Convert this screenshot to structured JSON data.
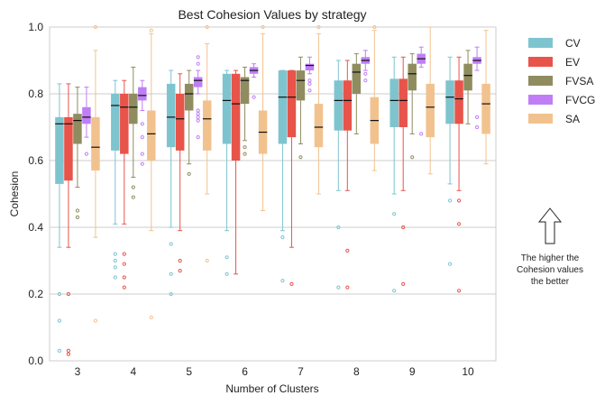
{
  "chart_data": {
    "type": "boxplot",
    "title": "Best Cohesion Values by strategy",
    "xlabel": "Number of Clusters",
    "ylabel": "Cohesion",
    "ylim": [
      0,
      1.0
    ],
    "y_ticks": [
      "0.0",
      "0.2",
      "0.4",
      "0.6",
      "0.8",
      "1.0"
    ],
    "y_tick_values": [
      0,
      0.2,
      0.4,
      0.6,
      0.8,
      1.0
    ],
    "categories": [
      "3",
      "4",
      "5",
      "6",
      "7",
      "8",
      "9",
      "10"
    ],
    "grid": true,
    "legend_position": "outside-right",
    "series": [
      {
        "name": "CV",
        "color": "#7ec4cf",
        "boxes": [
          {
            "q1": 0.53,
            "med": 0.71,
            "q3": 0.73,
            "lo": 0.34,
            "hi": 0.83,
            "fliers": [
              0.2,
              0.12,
              0.03
            ]
          },
          {
            "q1": 0.63,
            "med": 0.765,
            "q3": 0.8,
            "lo": 0.41,
            "hi": 0.84,
            "fliers": [
              0.32,
              0.3,
              0.28,
              0.25
            ]
          },
          {
            "q1": 0.64,
            "med": 0.73,
            "q3": 0.83,
            "lo": 0.4,
            "hi": 0.87,
            "fliers": [
              0.35,
              0.26,
              0.2
            ]
          },
          {
            "q1": 0.65,
            "med": 0.78,
            "q3": 0.86,
            "lo": 0.39,
            "hi": 0.87,
            "fliers": [
              0.31,
              0.26
            ]
          },
          {
            "q1": 0.65,
            "med": 0.79,
            "q3": 0.87,
            "lo": 0.39,
            "hi": 0.87,
            "fliers": [
              0.37,
              0.24
            ]
          },
          {
            "q1": 0.69,
            "med": 0.78,
            "q3": 0.84,
            "lo": 0.51,
            "hi": 0.9,
            "fliers": [
              0.4,
              0.22
            ]
          },
          {
            "q1": 0.7,
            "med": 0.78,
            "q3": 0.845,
            "lo": 0.5,
            "hi": 0.91,
            "fliers": [
              0.44,
              0.21
            ]
          },
          {
            "q1": 0.71,
            "med": 0.79,
            "q3": 0.84,
            "lo": 0.53,
            "hi": 0.91,
            "fliers": [
              0.48,
              0.29
            ]
          }
        ]
      },
      {
        "name": "EV",
        "color": "#e8544a",
        "boxes": [
          {
            "q1": 0.54,
            "med": 0.71,
            "q3": 0.73,
            "lo": 0.34,
            "hi": 0.83,
            "fliers": [
              0.2,
              0.03,
              0.02
            ]
          },
          {
            "q1": 0.62,
            "med": 0.76,
            "q3": 0.8,
            "lo": 0.41,
            "hi": 0.84,
            "fliers": [
              0.32,
              0.29,
              0.25,
              0.22
            ]
          },
          {
            "q1": 0.63,
            "med": 0.725,
            "q3": 0.8,
            "lo": 0.39,
            "hi": 0.86,
            "fliers": [
              0.3,
              0.27
            ]
          },
          {
            "q1": 0.6,
            "med": 0.77,
            "q3": 0.86,
            "lo": 0.26,
            "hi": 0.87,
            "fliers": []
          },
          {
            "q1": 0.67,
            "med": 0.79,
            "q3": 0.87,
            "lo": 0.34,
            "hi": 0.87,
            "fliers": [
              0.23
            ]
          },
          {
            "q1": 0.69,
            "med": 0.78,
            "q3": 0.84,
            "lo": 0.51,
            "hi": 0.9,
            "fliers": [
              0.33,
              0.22
            ]
          },
          {
            "q1": 0.7,
            "med": 0.78,
            "q3": 0.845,
            "lo": 0.51,
            "hi": 0.91,
            "fliers": [
              0.4,
              0.23
            ]
          },
          {
            "q1": 0.71,
            "med": 0.785,
            "q3": 0.84,
            "lo": 0.51,
            "hi": 0.91,
            "fliers": [
              0.48,
              0.41,
              0.21
            ]
          }
        ]
      },
      {
        "name": "FVSA",
        "color": "#8f8c5f",
        "boxes": [
          {
            "q1": 0.65,
            "med": 0.72,
            "q3": 0.74,
            "lo": 0.52,
            "hi": 0.82,
            "fliers": [
              0.45,
              0.43
            ]
          },
          {
            "q1": 0.71,
            "med": 0.76,
            "q3": 0.8,
            "lo": 0.55,
            "hi": 0.88,
            "fliers": [
              0.52,
              0.49
            ]
          },
          {
            "q1": 0.75,
            "med": 0.8,
            "q3": 0.83,
            "lo": 0.59,
            "hi": 0.87,
            "fliers": [
              0.56
            ]
          },
          {
            "q1": 0.77,
            "med": 0.84,
            "q3": 0.85,
            "lo": 0.66,
            "hi": 0.88,
            "fliers": [
              0.64,
              0.62
            ]
          },
          {
            "q1": 0.78,
            "med": 0.84,
            "q3": 0.87,
            "lo": 0.65,
            "hi": 0.91,
            "fliers": [
              0.61
            ]
          },
          {
            "q1": 0.8,
            "med": 0.865,
            "q3": 0.89,
            "lo": 0.68,
            "hi": 0.92,
            "fliers": []
          },
          {
            "q1": 0.81,
            "med": 0.86,
            "q3": 0.89,
            "lo": 0.68,
            "hi": 0.92,
            "fliers": [
              0.61
            ]
          },
          {
            "q1": 0.81,
            "med": 0.855,
            "q3": 0.89,
            "lo": 0.71,
            "hi": 0.93,
            "fliers": []
          }
        ]
      },
      {
        "name": "FVCG",
        "color": "#bf7ef5",
        "boxes": [
          {
            "q1": 0.71,
            "med": 0.73,
            "q3": 0.76,
            "lo": 0.67,
            "hi": 0.82,
            "fliers": [
              0.62
            ]
          },
          {
            "q1": 0.78,
            "med": 0.795,
            "q3": 0.82,
            "lo": 0.75,
            "hi": 0.84,
            "fliers": [
              0.71,
              0.67,
              0.62,
              0.59
            ]
          },
          {
            "q1": 0.82,
            "med": 0.84,
            "q3": 0.85,
            "lo": 0.8,
            "hi": 0.87,
            "fliers": [
              0.91,
              0.89,
              0.75,
              0.74,
              0.73,
              0.72,
              0.67
            ]
          },
          {
            "q1": 0.86,
            "med": 0.87,
            "q3": 0.88,
            "lo": 0.85,
            "hi": 0.89,
            "fliers": [
              0.79
            ]
          },
          {
            "q1": 0.87,
            "med": 0.885,
            "q3": 0.89,
            "lo": 0.86,
            "hi": 0.91,
            "fliers": [
              0.84,
              0.83,
              0.81
            ]
          },
          {
            "q1": 0.89,
            "med": 0.9,
            "q3": 0.91,
            "lo": 0.87,
            "hi": 0.93,
            "fliers": [
              0.86,
              0.84
            ]
          },
          {
            "q1": 0.89,
            "med": 0.905,
            "q3": 0.92,
            "lo": 0.88,
            "hi": 0.94,
            "fliers": [
              0.68
            ]
          },
          {
            "q1": 0.89,
            "med": 0.9,
            "q3": 0.91,
            "lo": 0.87,
            "hi": 0.94,
            "fliers": [
              0.73,
              0.7
            ]
          }
        ]
      },
      {
        "name": "SA",
        "color": "#f2c28e",
        "boxes": [
          {
            "q1": 0.57,
            "med": 0.64,
            "q3": 0.73,
            "lo": 0.37,
            "hi": 0.93,
            "fliers": [
              1.0,
              0.12
            ]
          },
          {
            "q1": 0.6,
            "med": 0.68,
            "q3": 0.75,
            "lo": 0.39,
            "hi": 0.98,
            "fliers": [
              0.99,
              0.13
            ]
          },
          {
            "q1": 0.63,
            "med": 0.725,
            "q3": 0.78,
            "lo": 0.5,
            "hi": 0.95,
            "fliers": [
              1.0,
              0.3
            ]
          },
          {
            "q1": 0.62,
            "med": 0.685,
            "q3": 0.75,
            "lo": 0.45,
            "hi": 0.98,
            "fliers": [
              1.0
            ]
          },
          {
            "q1": 0.64,
            "med": 0.7,
            "q3": 0.77,
            "lo": 0.5,
            "hi": 0.98,
            "fliers": [
              1.0
            ]
          },
          {
            "q1": 0.65,
            "med": 0.72,
            "q3": 0.79,
            "lo": 0.57,
            "hi": 0.99,
            "fliers": [
              1.0
            ]
          },
          {
            "q1": 0.67,
            "med": 0.76,
            "q3": 0.83,
            "lo": 0.56,
            "hi": 1.0,
            "fliers": []
          },
          {
            "q1": 0.68,
            "med": 0.77,
            "q3": 0.83,
            "lo": 0.59,
            "hi": 0.99,
            "fliers": []
          }
        ]
      }
    ],
    "annotation": {
      "lines": [
        "The higher the",
        "Cohesion values",
        "the better"
      ],
      "arrow": "up-arrow-icon"
    }
  }
}
